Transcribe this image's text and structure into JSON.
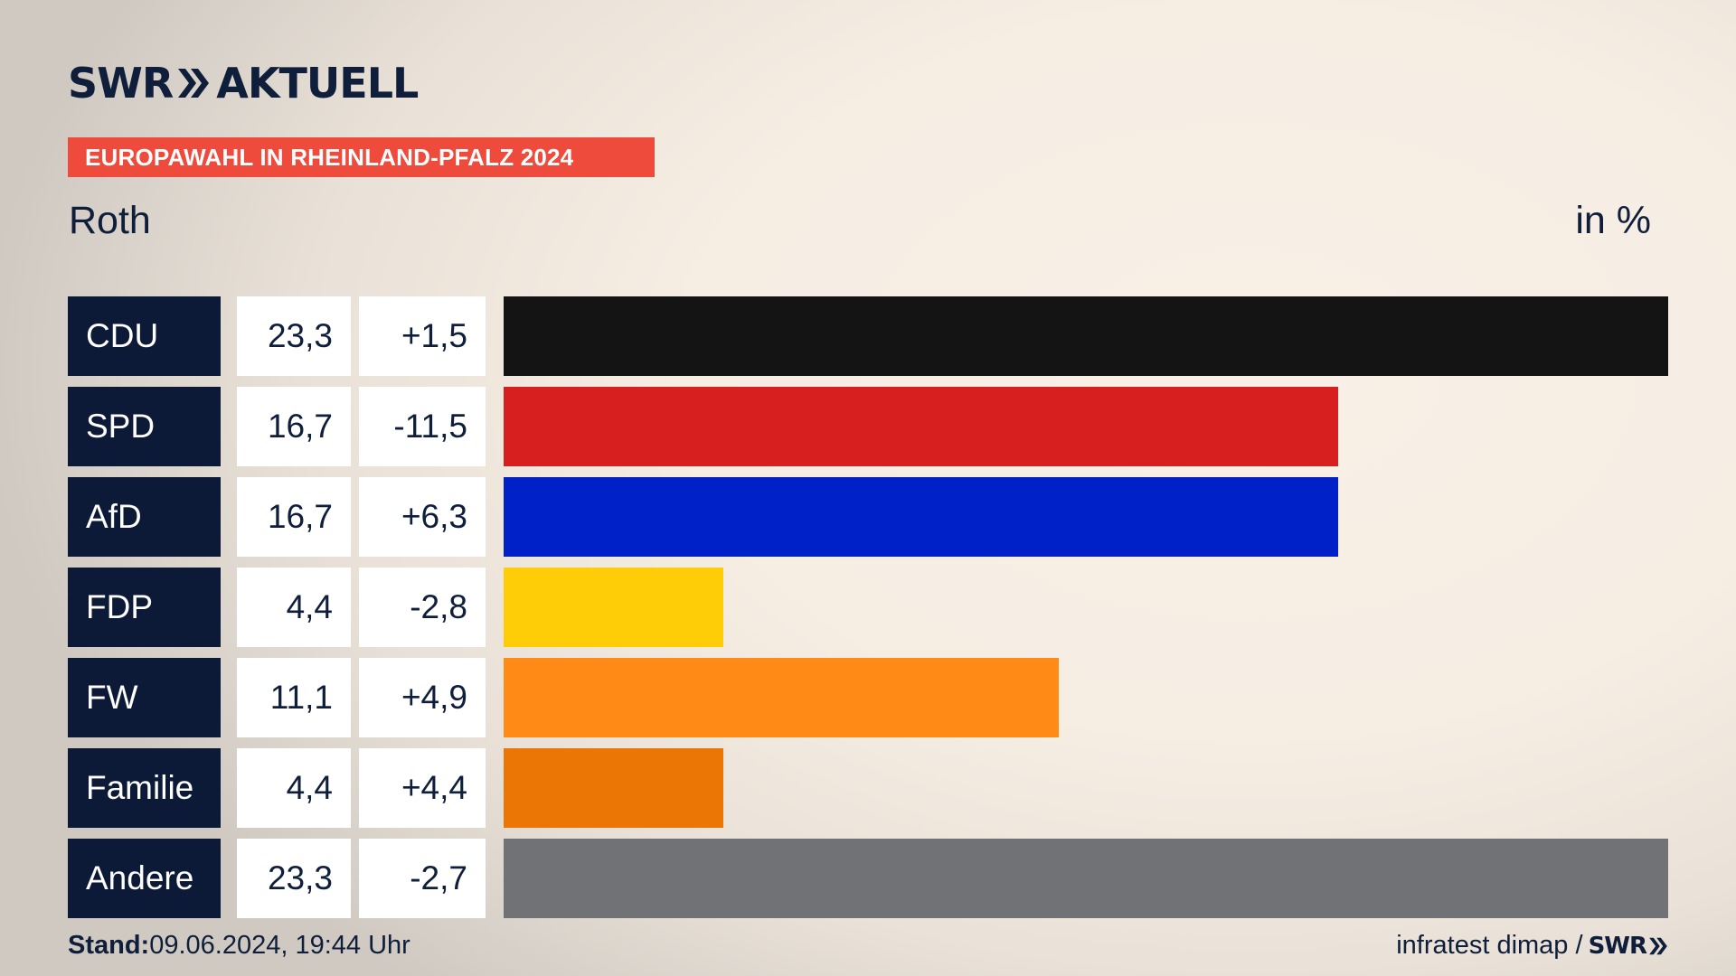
{
  "brand": {
    "logo_text_left": "SWR",
    "logo_text_right": "AKTUELL"
  },
  "banner": "EUROPAWAHL IN RHEINLAND-PFALZ 2024",
  "subtitle": "Roth",
  "unit_label": "in %",
  "footer": {
    "stand_label": "Stand:",
    "stand_value": "09.06.2024, 19:44 Uhr",
    "source": "infratest dimap /",
    "source_brand": "SWR"
  },
  "colors": {
    "CDU": "#141414",
    "SPD": "#d81f1f",
    "AfD": "#0020c8",
    "FDP": "#ffcc08",
    "FW": "#ff8b16",
    "Familie": "#eb7505",
    "Andere": "#717275",
    "banner": "#ef4b3d",
    "party_bg": "#0c1a38"
  },
  "chart_data": {
    "type": "bar",
    "orientation": "horizontal",
    "categories": [
      "CDU",
      "SPD",
      "AfD",
      "FDP",
      "FW",
      "Familie",
      "Andere"
    ],
    "values": [
      23.3,
      16.7,
      16.7,
      4.4,
      11.1,
      4.4,
      23.3
    ],
    "value_labels": [
      "23,3",
      "16,7",
      "16,7",
      "4,4",
      "11,1",
      "4,4",
      "23,3"
    ],
    "diff_labels": [
      "+1,5",
      "-11,5",
      "+6,3",
      "-2,8",
      "+4,9",
      "+4,4",
      "-2,7"
    ],
    "xlim": [
      0,
      23.3
    ]
  }
}
